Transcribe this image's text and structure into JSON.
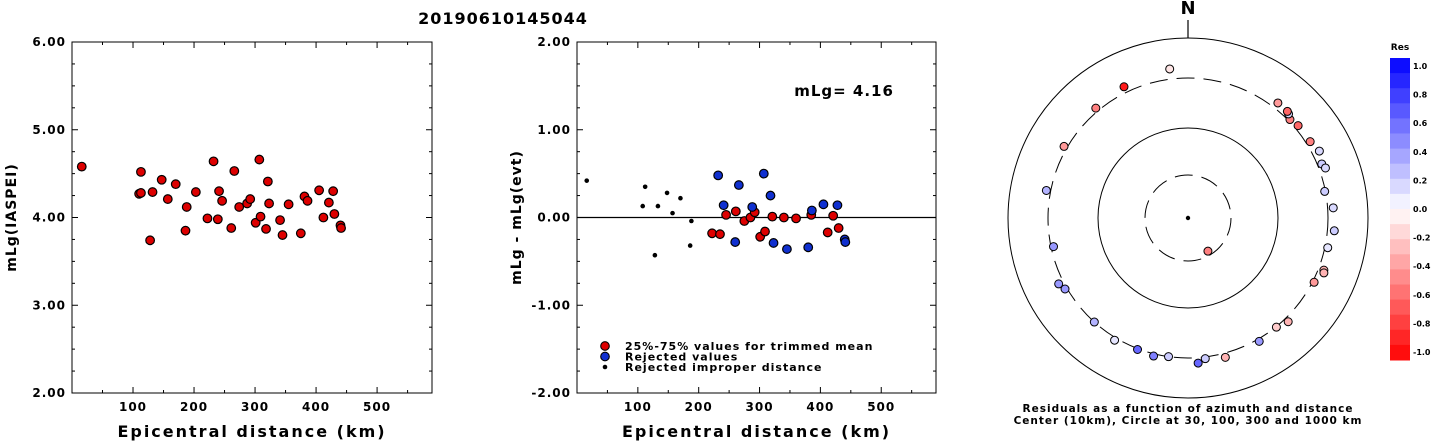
{
  "event_id": "20190610145044",
  "colors": {
    "used": "#dd0000",
    "rejected": "#1030d0",
    "improper": "#000000"
  },
  "chart_data": [
    {
      "type": "scatter",
      "xlabel": "Epicentral distance (km)",
      "ylabel": "mLg(IASPEI)",
      "xlim": [
        0,
        590
      ],
      "ylim": [
        2.0,
        6.0
      ],
      "x_ticks": [
        "100",
        "200",
        "300",
        "400",
        "500"
      ],
      "y_ticks": [
        "2.00",
        "3.00",
        "4.00",
        "5.00",
        "6.00"
      ],
      "series": [
        {
          "marker": "used",
          "points": [
            [
              16,
              4.58
            ],
            [
              110,
              4.27
            ],
            [
              113,
              4.52
            ],
            [
              113,
              4.28
            ],
            [
              128,
              3.74
            ],
            [
              132,
              4.29
            ],
            [
              147,
              4.43
            ],
            [
              157,
              4.21
            ],
            [
              170,
              4.38
            ],
            [
              186,
              3.85
            ],
            [
              188,
              4.12
            ],
            [
              203,
              4.29
            ],
            [
              222,
              3.99
            ],
            [
              232,
              4.64
            ],
            [
              239,
              3.98
            ],
            [
              241,
              4.3
            ],
            [
              246,
              4.19
            ],
            [
              261,
              3.88
            ],
            [
              266,
              4.53
            ],
            [
              274,
              4.12
            ],
            [
              287,
              4.16
            ],
            [
              292,
              4.21
            ],
            [
              301,
              3.94
            ],
            [
              307,
              4.66
            ],
            [
              309,
              4.01
            ],
            [
              318,
              3.87
            ],
            [
              321,
              4.41
            ],
            [
              323,
              4.16
            ],
            [
              341,
              3.97
            ],
            [
              345,
              3.8
            ],
            [
              355,
              4.15
            ],
            [
              375,
              3.82
            ],
            [
              381,
              4.24
            ],
            [
              386,
              4.19
            ],
            [
              405,
              4.31
            ],
            [
              412,
              4.0
            ],
            [
              421,
              4.17
            ],
            [
              428,
              4.3
            ],
            [
              430,
              4.04
            ],
            [
              440,
              3.91
            ],
            [
              441,
              3.88
            ]
          ]
        }
      ]
    },
    {
      "type": "scatter",
      "xlabel": "Epicentral distance (km)",
      "ylabel": "mLg - mLg(evt)",
      "xlim": [
        0,
        590
      ],
      "ylim": [
        -2.0,
        2.0
      ],
      "x_ticks": [
        "100",
        "200",
        "300",
        "400",
        "500"
      ],
      "y_ticks": [
        "-2.00",
        "-1.00",
        "0.00",
        "1.00",
        "2.00"
      ],
      "annotation": "mLg= 4.16",
      "zero_line": true,
      "legend": {
        "placement": "bottom-left",
        "entries": [
          {
            "marker": "used",
            "label": "25%-75% values for trimmed mean"
          },
          {
            "marker": "rejected",
            "label": "Rejected values"
          },
          {
            "marker": "improper",
            "label": "Rejected improper distance"
          }
        ]
      },
      "series": [
        {
          "marker": "used",
          "points": [
            [
              222,
              -0.18
            ],
            [
              235,
              -0.19
            ],
            [
              245,
              0.03
            ],
            [
              261,
              0.07
            ],
            [
              275,
              -0.04
            ],
            [
              285,
              0.0
            ],
            [
              292,
              0.06
            ],
            [
              301,
              -0.22
            ],
            [
              309,
              -0.16
            ],
            [
              321,
              0.01
            ],
            [
              340,
              0.0
            ],
            [
              360,
              -0.01
            ],
            [
              385,
              0.03
            ],
            [
              412,
              -0.17
            ],
            [
              421,
              0.02
            ],
            [
              430,
              -0.12
            ]
          ]
        },
        {
          "marker": "rejected",
          "points": [
            [
              232,
              0.48
            ],
            [
              241,
              0.14
            ],
            [
              260,
              -0.28
            ],
            [
              266,
              0.37
            ],
            [
              288,
              0.12
            ],
            [
              307,
              0.5
            ],
            [
              318,
              0.25
            ],
            [
              323,
              -0.29
            ],
            [
              345,
              -0.36
            ],
            [
              380,
              -0.34
            ],
            [
              386,
              0.08
            ],
            [
              405,
              0.15
            ],
            [
              428,
              0.14
            ],
            [
              440,
              -0.25
            ],
            [
              441,
              -0.28
            ]
          ]
        },
        {
          "marker": "improper",
          "points": [
            [
              16,
              0.42
            ],
            [
              108,
              0.13
            ],
            [
              112,
              0.35
            ],
            [
              128,
              -0.43
            ],
            [
              133,
              0.13
            ],
            [
              148,
              0.28
            ],
            [
              157,
              0.05
            ],
            [
              170,
              0.22
            ],
            [
              186,
              -0.32
            ],
            [
              188,
              -0.04
            ]
          ]
        }
      ]
    },
    {
      "type": "scatter",
      "subtype": "polar",
      "north_label": "N",
      "caption_line1": "Residuals as a function of azimuth and distance",
      "caption_line2": "Center (10km), Circle at 30, 100, 300 and 1000 km",
      "rings_km": [
        30,
        100,
        300,
        1000
      ],
      "colorbar": {
        "title": "Res",
        "labels": [
          "1.0",
          "0.8",
          "0.6",
          "0.4",
          "0.2",
          "0.0",
          "-0.2",
          "-0.4",
          "-0.6",
          "-0.8",
          "-1.0"
        ]
      },
      "points_az_km_res": [
        [
          334,
          405,
          -0.9
        ],
        [
          353,
          478,
          -0.1
        ],
        [
          320,
          360,
          -0.5
        ],
        [
          300,
          355,
          -0.4
        ],
        [
          281,
          375,
          0.3
        ],
        [
          258,
          290,
          0.4
        ],
        [
          243,
          390,
          0.4
        ],
        [
          240,
          335,
          0.4
        ],
        [
          211,
          345,
          0.1
        ],
        [
          222,
          300,
          0.3
        ],
        [
          201,
          315,
          0.6
        ],
        [
          194,
          340,
          0.5
        ],
        [
          188,
          300,
          0.2
        ],
        [
          173,
          330,
          0.2
        ],
        [
          176,
          395,
          0.6
        ],
        [
          165,
          375,
          -0.3
        ],
        [
          150,
          343,
          0.4
        ],
        [
          141,
          308,
          -0.2
        ],
        [
          136,
          374,
          -0.3
        ],
        [
          117,
          327,
          -0.4
        ],
        [
          111,
          397,
          -0.3
        ],
        [
          112,
          415,
          -0.3
        ],
        [
          102,
          350,
          0.1
        ],
        [
          95,
          420,
          0.2
        ],
        [
          86,
          398,
          0.15
        ],
        [
          79,
          297,
          0.2
        ],
        [
          68,
          375,
          0.2
        ],
        [
          70,
          410,
          0.15
        ],
        [
          63,
          430,
          0.15
        ],
        [
          58,
          371,
          -0.5
        ],
        [
          50,
          365,
          -0.6
        ],
        [
          46,
          330,
          -0.5
        ],
        [
          44,
          383,
          0.15
        ],
        [
          43,
          400,
          -0.6
        ],
        [
          38,
          405,
          -0.4
        ],
        [
          149,
          28,
          -0.5
        ]
      ]
    }
  ]
}
